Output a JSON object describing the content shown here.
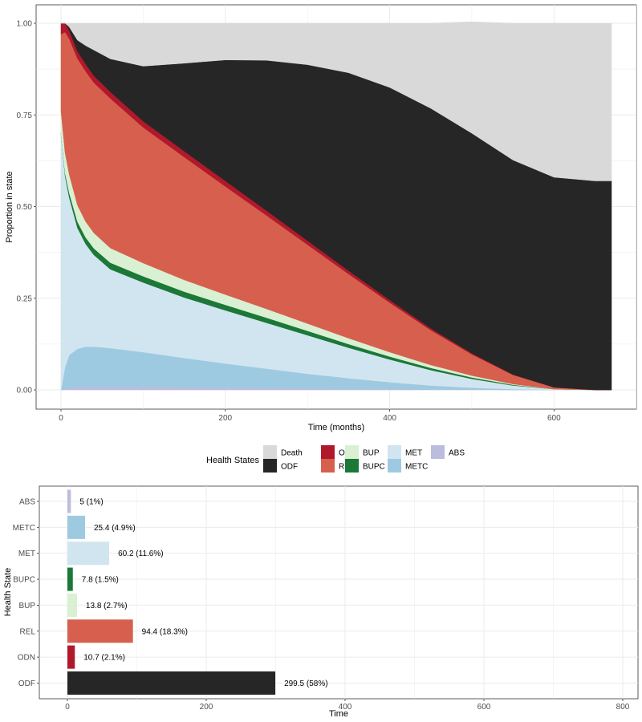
{
  "chart_data": [
    {
      "type": "area",
      "stacked": true,
      "xlabel": "Time (months)",
      "ylabel": "Proportion in state",
      "xlim": [
        0,
        670
      ],
      "ylim": [
        0,
        1
      ],
      "xticks": [
        0,
        200,
        400,
        600
      ],
      "yticks": [
        0,
        0.25,
        0.5,
        0.75,
        1
      ],
      "ytick_labels": [
        "0.00",
        "0.25",
        "0.50",
        "0.75",
        "1.00"
      ],
      "grid": true,
      "x": [
        0,
        5,
        10,
        20,
        30,
        40,
        60,
        100,
        150,
        200,
        250,
        300,
        350,
        400,
        450,
        500,
        550,
        600,
        650,
        670
      ],
      "series": [
        {
          "name": "ABS",
          "values": [
            0.0,
            0.003,
            0.005,
            0.007,
            0.008,
            0.008,
            0.008,
            0.008,
            0.007,
            0.006,
            0.005,
            0.004,
            0.003,
            0.002,
            0.001,
            0.001,
            0.0,
            0.0,
            0.0,
            0.0
          ]
        },
        {
          "name": "METC",
          "values": [
            0.0,
            0.06,
            0.09,
            0.105,
            0.11,
            0.11,
            0.106,
            0.095,
            0.08,
            0.066,
            0.053,
            0.04,
            0.029,
            0.019,
            0.011,
            0.005,
            0.002,
            0.0,
            0.0,
            0.0
          ]
        },
        {
          "name": "MET",
          "values": [
            0.7,
            0.52,
            0.43,
            0.33,
            0.28,
            0.25,
            0.215,
            0.19,
            0.165,
            0.145,
            0.125,
            0.105,
            0.083,
            0.062,
            0.042,
            0.024,
            0.01,
            0.002,
            0.0,
            0.0
          ]
        },
        {
          "name": "BUPC",
          "values": [
            0.0,
            0.008,
            0.013,
            0.017,
            0.018,
            0.018,
            0.018,
            0.017,
            0.016,
            0.015,
            0.014,
            0.012,
            0.01,
            0.008,
            0.006,
            0.004,
            0.002,
            0.0,
            0.0,
            0.0
          ]
        },
        {
          "name": "BUP",
          "values": [
            0.06,
            0.055,
            0.05,
            0.045,
            0.043,
            0.042,
            0.04,
            0.036,
            0.032,
            0.028,
            0.024,
            0.02,
            0.016,
            0.012,
            0.008,
            0.005,
            0.002,
            0.0,
            0.0,
            0.0
          ]
        },
        {
          "name": "REL",
          "values": [
            0.21,
            0.33,
            0.37,
            0.4,
            0.41,
            0.41,
            0.408,
            0.37,
            0.335,
            0.295,
            0.255,
            0.215,
            0.175,
            0.135,
            0.095,
            0.058,
            0.025,
            0.005,
            0.0,
            0.0
          ]
        },
        {
          "name": "ODN",
          "values": [
            0.03,
            0.024,
            0.022,
            0.02,
            0.02,
            0.019,
            0.018,
            0.017,
            0.016,
            0.015,
            0.013,
            0.011,
            0.009,
            0.007,
            0.005,
            0.003,
            0.001,
            0.0,
            0.0,
            0.0
          ]
        },
        {
          "name": "ODF",
          "values": [
            0.0,
            0.0,
            0.01,
            0.03,
            0.05,
            0.07,
            0.09,
            0.15,
            0.24,
            0.33,
            0.41,
            0.48,
            0.54,
            0.58,
            0.6,
            0.6,
            0.585,
            0.573,
            0.57,
            0.57
          ]
        },
        {
          "name": "Death",
          "values": [
            0.0,
            0.0,
            0.01,
            0.046,
            0.061,
            0.073,
            0.097,
            0.117,
            0.109,
            0.1,
            0.101,
            0.113,
            0.135,
            0.175,
            0.232,
            0.304,
            0.373,
            0.42,
            0.43,
            0.43
          ]
        }
      ],
      "legend": {
        "title": "Health States",
        "position": "bottom",
        "items": [
          {
            "label": "Death",
            "color": "#d9d9d9"
          },
          {
            "label": "ODF",
            "color": "#262626"
          },
          {
            "label": "ODN",
            "color": "#b2182b"
          },
          {
            "label": "REL",
            "color": "#d6604d"
          },
          {
            "label": "BUP",
            "color": "#d9f0d3"
          },
          {
            "label": "BUPC",
            "color": "#1b7837"
          },
          {
            "label": "MET",
            "color": "#d1e5f0"
          },
          {
            "label": "METC",
            "color": "#9ecae1"
          },
          {
            "label": "ABS",
            "color": "#bcbddc"
          }
        ]
      }
    },
    {
      "type": "bar",
      "orientation": "horizontal",
      "xlabel": "Time",
      "ylabel": "Health State",
      "xlim": [
        0,
        800
      ],
      "xticks": [
        0,
        200,
        400,
        600,
        800
      ],
      "grid": true,
      "categories": [
        "ABS",
        "METC",
        "MET",
        "BUPC",
        "BUP",
        "REL",
        "ODN",
        "ODF"
      ],
      "values": [
        5,
        25.4,
        60.2,
        7.8,
        13.8,
        94.4,
        10.7,
        299.5
      ],
      "labels": [
        "5 (1%)",
        "25.4 (4.9%)",
        "60.2 (11.6%)",
        "7.8 (1.5%)",
        "13.8 (2.7%)",
        "94.4 (18.3%)",
        "10.7 (2.1%)",
        "299.5 (58%)"
      ],
      "colors": [
        "#bcbddc",
        "#9ecae1",
        "#d1e5f0",
        "#1b7837",
        "#d9f0d3",
        "#d6604d",
        "#b2182b",
        "#262626"
      ]
    }
  ]
}
